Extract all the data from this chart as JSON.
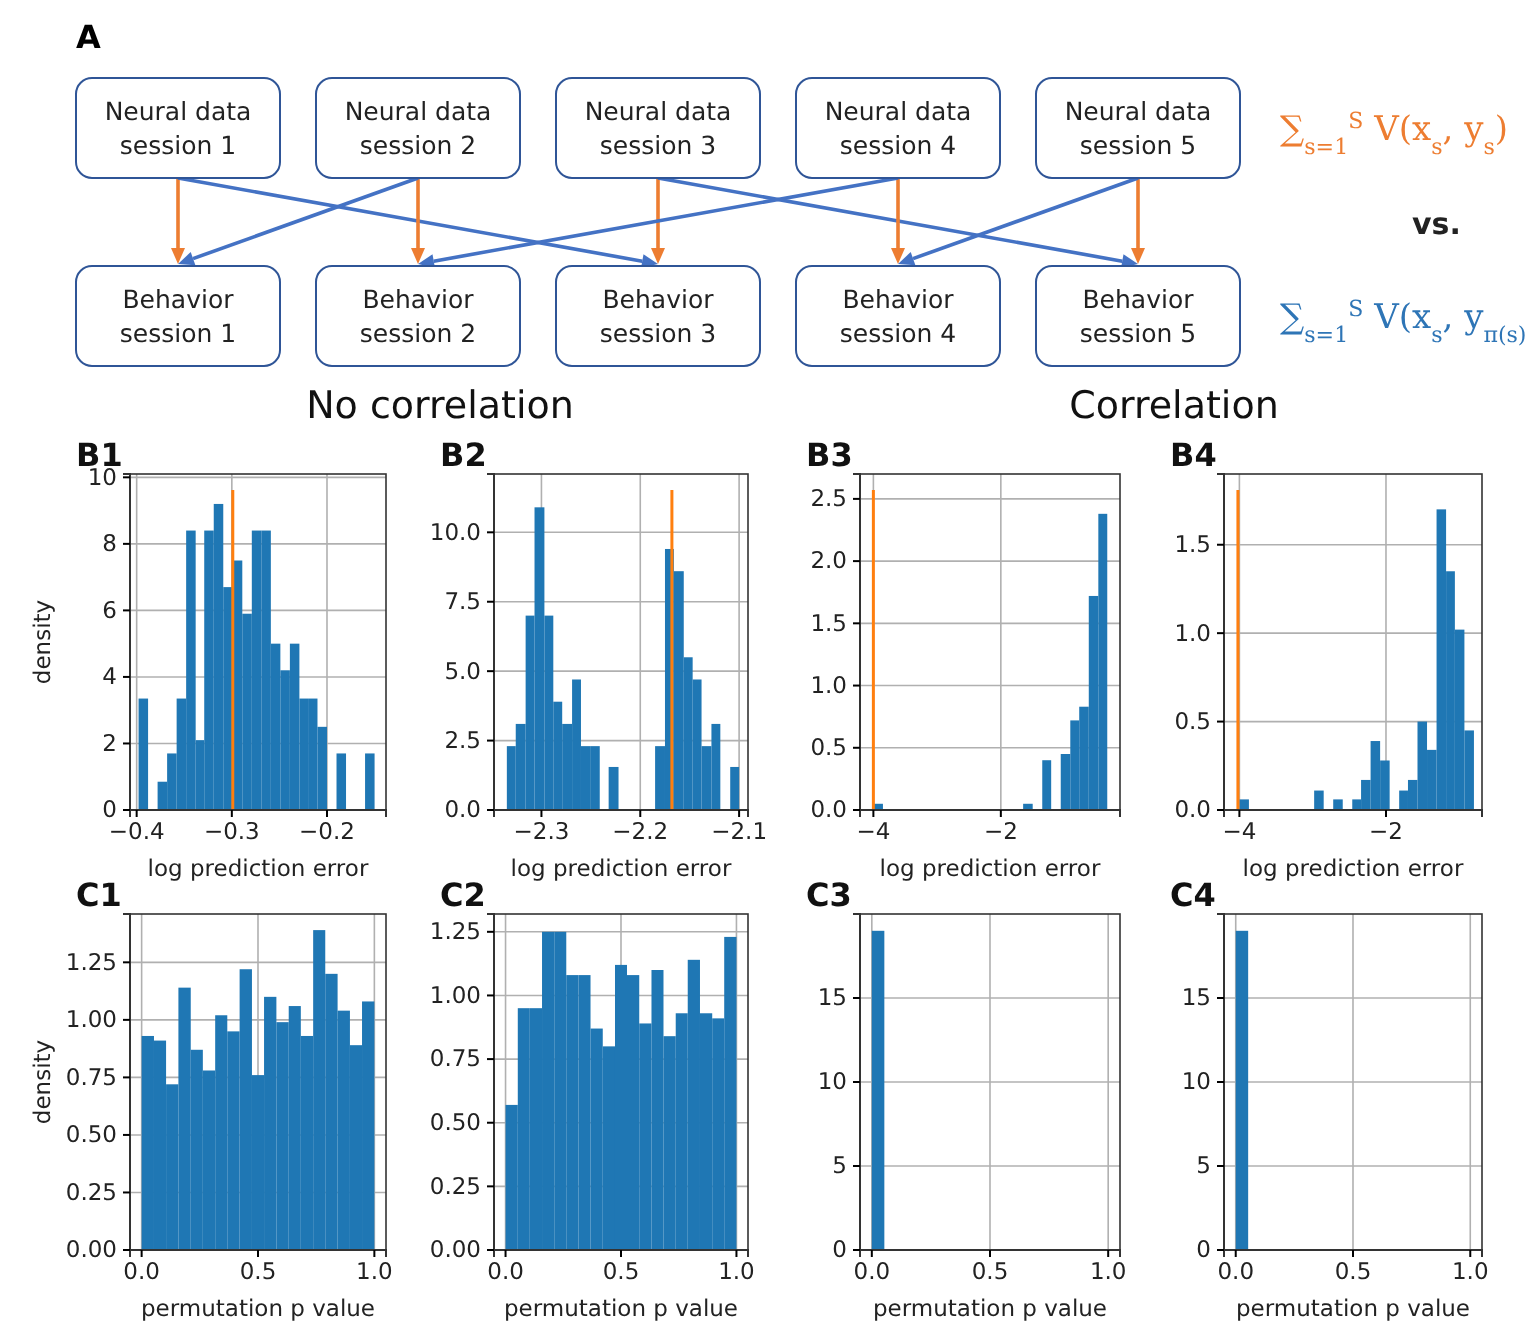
{
  "chart_data": [
    {
      "type": "other",
      "title": "A",
      "annotations": [
        "Neural data\nsession 1",
        "Neural data\nsession 2",
        "Neural data\nsession 3",
        "Neural data\nsession 4",
        "Neural data\nsession 5",
        "Behavior\nsession 1",
        "Behavior\nsession 2",
        "Behavior\nsession 3",
        "Behavior\nsession 4",
        "Behavior\nsession 5",
        "∑$_{s=1}$$^{S}$ V(x$_{s}$, y$_{s}$)",
        "vs.",
        "∑$_{s=1}$$^{S}$ V(x$_{s}$, y$_{π(s)}$)"
      ]
    },
    {
      "type": "histogram",
      "title": "B1",
      "subtitle": "No correlation",
      "xlabel": "log prediction error",
      "ylabel": "density",
      "color": "#1f77b4",
      "grid": true,
      "bins": [
        -0.398,
        -0.388,
        -0.378,
        -0.368,
        -0.358,
        -0.348,
        -0.338,
        -0.329,
        -0.319,
        -0.309,
        -0.299,
        -0.289,
        -0.279,
        -0.269,
        -0.259,
        -0.249,
        -0.239,
        -0.229,
        -0.219,
        -0.21,
        -0.2,
        -0.19,
        -0.18,
        -0.16,
        -0.15
      ],
      "values": [
        3.35,
        0,
        0.85,
        1.7,
        3.35,
        8.4,
        2.1,
        8.4,
        9.2,
        6.7,
        7.5,
        5.9,
        8.4,
        8.4,
        5.0,
        4.2,
        5.0,
        3.35,
        3.35,
        2.5,
        0,
        1.7,
        0,
        1.7
      ],
      "xlim": [
        -0.407,
        -0.138
      ],
      "xticks": [
        {
          "value": -0.4,
          "label": "−0.4"
        },
        {
          "value": -0.3,
          "label": "−0.3"
        },
        {
          "value": -0.2,
          "label": "−0.2"
        }
      ],
      "ylim": [
        0,
        10.1
      ],
      "yticks": [
        0,
        2,
        4,
        6,
        8,
        10
      ],
      "ref_lines": [
        {
          "axis": "x",
          "value": -0.299,
          "color": "#ff7f0e"
        }
      ]
    },
    {
      "type": "histogram",
      "title": "B2",
      "xlabel": "log prediction error",
      "color": "#1f77b4",
      "grid": true,
      "bins": [
        -2.335,
        -2.326,
        -2.316,
        -2.307,
        -2.297,
        -2.288,
        -2.279,
        -2.269,
        -2.26,
        -2.25,
        -2.241,
        -2.232,
        -2.222,
        -2.185,
        -2.175,
        -2.166,
        -2.156,
        -2.147,
        -2.138,
        -2.128,
        -2.119,
        -2.109,
        -2.1
      ],
      "values": [
        2.3,
        3.1,
        7.0,
        10.9,
        7.0,
        3.9,
        3.1,
        4.7,
        2.3,
        2.3,
        0,
        1.55,
        0,
        2.3,
        9.4,
        8.6,
        5.5,
        4.7,
        2.3,
        3.1,
        0,
        1.55
      ],
      "xlim": [
        -2.348,
        -2.091
      ],
      "xticks": [
        {
          "value": -2.3,
          "label": "−2.3"
        },
        {
          "value": -2.2,
          "label": "−2.2"
        },
        {
          "value": -2.1,
          "label": "−2.1"
        }
      ],
      "ylim": [
        0,
        12.1
      ],
      "yticks": [
        {
          "value": 0,
          "label": "0.0"
        },
        {
          "value": 2.5,
          "label": "2.5"
        },
        {
          "value": 5,
          "label": "5.0"
        },
        {
          "value": 7.5,
          "label": "7.5"
        },
        {
          "value": 10,
          "label": "10.0"
        }
      ],
      "ref_lines": [
        {
          "axis": "x",
          "value": -2.168,
          "color": "#ff7f0e"
        }
      ]
    },
    {
      "type": "histogram",
      "title": "B3",
      "subtitle": "Correlation",
      "xlabel": "log prediction error",
      "color": "#1f77b4",
      "grid": true,
      "bins": [
        -4.0,
        -3.85,
        -1.65,
        -1.5,
        -1.35,
        -1.21,
        -1.06,
        -0.91,
        -0.77,
        -0.62,
        -0.47,
        -0.33
      ],
      "values": [
        0.05,
        0,
        0.05,
        0,
        0.4,
        0,
        0.45,
        0.72,
        0.83,
        1.72,
        2.38
      ],
      "xlim": [
        -4.21,
        -0.13
      ],
      "xticks": [
        {
          "value": -4,
          "label": "−4"
        },
        {
          "value": -2,
          "label": "−2"
        }
      ],
      "ylim": [
        0,
        2.7
      ],
      "yticks": [
        {
          "value": 0,
          "label": "0.0"
        },
        {
          "value": 0.5,
          "label": "0.5"
        },
        {
          "value": 1,
          "label": "1.0"
        },
        {
          "value": 1.5,
          "label": "1.5"
        },
        {
          "value": 2,
          "label": "2.0"
        },
        {
          "value": 2.5,
          "label": "2.5"
        }
      ],
      "ref_lines": [
        {
          "axis": "x",
          "value": -4.0,
          "color": "#ff7f0e"
        }
      ]
    },
    {
      "type": "histogram",
      "title": "B4",
      "xlabel": "log prediction error",
      "color": "#1f77b4",
      "grid": true,
      "bins": [
        -4.0,
        -3.87,
        -2.98,
        -2.85,
        -2.72,
        -2.59,
        -2.46,
        -2.34,
        -2.21,
        -2.08,
        -1.95,
        -1.82,
        -1.7,
        -1.57,
        -1.44,
        -1.31,
        -1.18,
        -1.06,
        -0.93,
        -0.8
      ],
      "values": [
        0.06,
        0,
        0.11,
        0,
        0.06,
        0,
        0.06,
        0.17,
        0.39,
        0.28,
        0,
        0.11,
        0.17,
        0.5,
        0.34,
        1.7,
        1.35,
        1.02,
        0.45
      ],
      "xlim": [
        -4.21,
        -0.69
      ],
      "xticks": [
        {
          "value": -4,
          "label": "−4"
        },
        {
          "value": -2,
          "label": "−2"
        }
      ],
      "ylim": [
        0,
        1.9
      ],
      "yticks": [
        {
          "value": 0,
          "label": "0.0"
        },
        {
          "value": 0.5,
          "label": "0.5"
        },
        {
          "value": 1,
          "label": "1.0"
        },
        {
          "value": 1.5,
          "label": "1.5"
        }
      ],
      "ref_lines": [
        {
          "axis": "x",
          "value": -4.02,
          "color": "#ff7f0e"
        }
      ]
    },
    {
      "type": "histogram",
      "title": "C1",
      "xlabel": "permutation p value",
      "ylabel": "density",
      "color": "#1f77b4",
      "grid": true,
      "bins": [
        0,
        0.053,
        0.105,
        0.158,
        0.211,
        0.263,
        0.316,
        0.368,
        0.421,
        0.474,
        0.526,
        0.579,
        0.632,
        0.684,
        0.737,
        0.789,
        0.842,
        0.895,
        0.947,
        1.0
      ],
      "values": [
        0.93,
        0.91,
        0.72,
        1.14,
        0.87,
        0.78,
        1.02,
        0.95,
        1.22,
        0.76,
        1.1,
        0.99,
        1.06,
        0.93,
        1.39,
        1.2,
        1.04,
        0.89,
        1.08
      ],
      "xlim": [
        -0.05,
        1.05
      ],
      "xticks": [
        {
          "value": 0,
          "label": "0.0"
        },
        {
          "value": 0.5,
          "label": "0.5"
        },
        {
          "value": 1,
          "label": "1.0"
        }
      ],
      "ylim": [
        0,
        1.46
      ],
      "yticks": [
        {
          "value": 0,
          "label": "0.00"
        },
        {
          "value": 0.25,
          "label": "0.25"
        },
        {
          "value": 0.5,
          "label": "0.50"
        },
        {
          "value": 0.75,
          "label": "0.75"
        },
        {
          "value": 1,
          "label": "1.00"
        },
        {
          "value": 1.25,
          "label": "1.25"
        }
      ]
    },
    {
      "type": "histogram",
      "title": "C2",
      "xlabel": "permutation p value",
      "color": "#1f77b4",
      "grid": true,
      "bins": [
        0,
        0.053,
        0.105,
        0.158,
        0.211,
        0.263,
        0.316,
        0.368,
        0.421,
        0.474,
        0.526,
        0.579,
        0.632,
        0.684,
        0.737,
        0.789,
        0.842,
        0.895,
        0.947,
        1.0
      ],
      "values": [
        0.57,
        0.95,
        0.95,
        1.25,
        1.25,
        1.08,
        1.08,
        0.87,
        0.8,
        1.12,
        1.08,
        0.89,
        1.1,
        0.84,
        0.93,
        1.14,
        0.93,
        0.91,
        1.23
      ],
      "xlim": [
        -0.05,
        1.05
      ],
      "xticks": [
        {
          "value": 0,
          "label": "0.0"
        },
        {
          "value": 0.5,
          "label": "0.5"
        },
        {
          "value": 1,
          "label": "1.0"
        }
      ],
      "ylim": [
        0,
        1.32
      ],
      "yticks": [
        {
          "value": 0,
          "label": "0.00"
        },
        {
          "value": 0.25,
          "label": "0.25"
        },
        {
          "value": 0.5,
          "label": "0.50"
        },
        {
          "value": 0.75,
          "label": "0.75"
        },
        {
          "value": 1,
          "label": "1.00"
        },
        {
          "value": 1.25,
          "label": "1.25"
        }
      ]
    },
    {
      "type": "histogram",
      "title": "C3",
      "xlabel": "permutation p value",
      "color": "#1f77b4",
      "grid": true,
      "bins": [
        0,
        0.053
      ],
      "values": [
        19
      ],
      "xlim": [
        -0.05,
        1.05
      ],
      "xticks": [
        {
          "value": 0,
          "label": "0.0"
        },
        {
          "value": 0.5,
          "label": "0.5"
        },
        {
          "value": 1,
          "label": "1.0"
        }
      ],
      "ylim": [
        0,
        20
      ],
      "yticks": [
        0,
        5,
        10,
        15
      ]
    },
    {
      "type": "histogram",
      "title": "C4",
      "xlabel": "permutation p value",
      "color": "#1f77b4",
      "grid": true,
      "bins": [
        0,
        0.053
      ],
      "values": [
        19
      ],
      "xlim": [
        -0.05,
        1.05
      ],
      "xticks": [
        {
          "value": 0,
          "label": "0.0"
        },
        {
          "value": 0.5,
          "label": "0.5"
        },
        {
          "value": 1,
          "label": "1.0"
        }
      ],
      "ylim": [
        0,
        20
      ],
      "yticks": [
        0,
        5,
        10,
        15
      ]
    }
  ]
}
